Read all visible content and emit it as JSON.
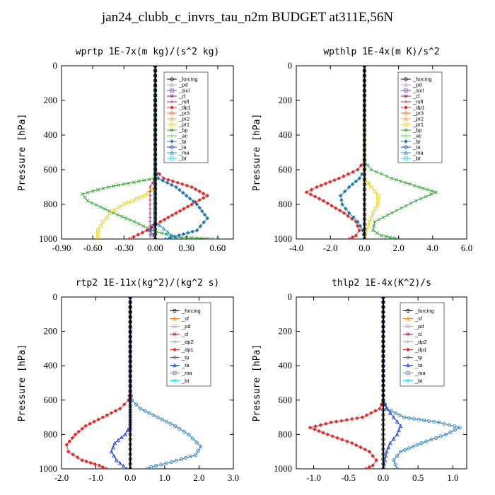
{
  "figure_title": "jan24_clubb_c_invrs_tau_n2m  BUDGET at311E,56N",
  "colors": {
    "forcing": "#000000",
    "pd": "#c8a0e6",
    "sicl": "#7a3db5",
    "cl": "#8c1a5e",
    "mfl": "#a0305a",
    "dp1": "#e62828",
    "pr3": "#f07030",
    "pr2": "#f0b040",
    "pr1": "#e6d21e",
    "bp": "#2ca02c",
    "ac": "#5ad23c",
    "tp": "#1f78b4",
    "ta": "#1f3cc8",
    "ma": "#1e96c8",
    "bt": "#1ed2e6",
    "sf": "#e68c28",
    "dp2": "#3cc83c"
  },
  "chart_data": [
    {
      "type": "line",
      "title": "wprtp  1E-7x(m kg)/(s^2 kg)",
      "ylabel": "Pressure [hPa]",
      "xlim": [
        -0.9,
        0.75
      ],
      "ylim": [
        1000,
        0
      ],
      "xticks": [
        "-0.90",
        "-0.60",
        "-0.30",
        "0.00",
        "0.30",
        "0.60"
      ],
      "yticks": [
        "0",
        "200",
        "400",
        "600",
        "800",
        "1000"
      ],
      "legend": [
        "_forcing",
        "_pd",
        "_sicl",
        "_cl",
        "_mfl",
        "_dp1",
        "_pr3",
        "_pr2",
        "_pr1",
        "_bp",
        "_ac",
        "_tp",
        "_ta",
        "_ma",
        "_bt"
      ],
      "series": [
        {
          "name": "_forcing",
          "points": [
            [
              0,
              0
            ],
            [
              0,
              1000
            ]
          ]
        },
        {
          "name": "_bp",
          "points": [
            [
              0,
              0
            ],
            [
              0,
              600
            ],
            [
              -0.01,
              650
            ],
            [
              -0.45,
              700
            ],
            [
              -0.7,
              740
            ],
            [
              -0.65,
              780
            ],
            [
              -0.4,
              850
            ],
            [
              -0.2,
              900
            ],
            [
              -0.03,
              950
            ],
            [
              0.2,
              990
            ],
            [
              0.6,
              1000
            ]
          ]
        },
        {
          "name": "_dp1",
          "points": [
            [
              0,
              0
            ],
            [
              0,
              600
            ],
            [
              0.08,
              650
            ],
            [
              0.35,
              700
            ],
            [
              0.5,
              750
            ],
            [
              0.35,
              800
            ],
            [
              0.2,
              850
            ],
            [
              0.05,
              900
            ],
            [
              -0.08,
              950
            ],
            [
              -0.25,
              1000
            ]
          ]
        },
        {
          "name": "_tp",
          "points": [
            [
              0,
              0
            ],
            [
              0,
              600
            ],
            [
              0.03,
              650
            ],
            [
              0.2,
              700
            ],
            [
              0.3,
              750
            ],
            [
              0.4,
              800
            ],
            [
              0.5,
              880
            ],
            [
              0.4,
              950
            ],
            [
              0.1,
              1000
            ]
          ]
        },
        {
          "name": "_pr1",
          "points": [
            [
              0,
              0
            ],
            [
              0,
              700
            ],
            [
              -0.1,
              750
            ],
            [
              -0.3,
              800
            ],
            [
              -0.43,
              850
            ],
            [
              -0.5,
              900
            ],
            [
              -0.55,
              950
            ],
            [
              -0.55,
              1000
            ]
          ]
        },
        {
          "name": "_mfl",
          "points": [
            [
              0,
              0
            ],
            [
              0,
              650
            ],
            [
              -0.05,
              700
            ],
            [
              -0.05,
              800
            ],
            [
              -0.05,
              900
            ],
            [
              -0.05,
              1000
            ]
          ]
        },
        {
          "name": "_ma",
          "points": [
            [
              0,
              0
            ],
            [
              0,
              900
            ],
            [
              0.2,
              1000
            ]
          ]
        },
        {
          "name": "_ta",
          "points": [
            [
              0,
              0
            ],
            [
              0,
              900
            ],
            [
              -0.05,
              950
            ],
            [
              0,
              1000
            ]
          ]
        }
      ]
    },
    {
      "type": "line",
      "title": "wpthlp  1E-4x(m K)/s^2",
      "ylabel": "Pressure [hPa]",
      "xlim": [
        -4.0,
        6.0
      ],
      "ylim": [
        1000,
        0
      ],
      "xticks": [
        "-4.0",
        "-2.0",
        "0.0",
        "2.0",
        "4.0",
        "6.0"
      ],
      "yticks": [
        "0",
        "200",
        "400",
        "600",
        "800",
        "1000"
      ],
      "legend": [
        "_forcing",
        "_pd",
        "_sicl",
        "_cl",
        "_mfl",
        "_dp1",
        "_pr3",
        "_pr2",
        "_pr1",
        "_bp",
        "_ac",
        "_tp",
        "_ta",
        "_ma",
        "_bt"
      ],
      "series": [
        {
          "name": "_forcing",
          "points": [
            [
              0,
              0
            ],
            [
              0,
              1000
            ]
          ]
        },
        {
          "name": "_bp",
          "points": [
            [
              0,
              0
            ],
            [
              0,
              550
            ],
            [
              0.4,
              600
            ],
            [
              1.6,
              650
            ],
            [
              3.2,
              700
            ],
            [
              4.2,
              730
            ],
            [
              3.0,
              780
            ],
            [
              1.6,
              850
            ],
            [
              0.6,
              900
            ],
            [
              0.5,
              950
            ],
            [
              1.0,
              980
            ],
            [
              2.0,
              1000
            ]
          ]
        },
        {
          "name": "_dp1",
          "points": [
            [
              0,
              0
            ],
            [
              0,
              550
            ],
            [
              -0.4,
              600
            ],
            [
              -1.5,
              650
            ],
            [
              -2.8,
              700
            ],
            [
              -3.4,
              730
            ],
            [
              -2.4,
              780
            ],
            [
              -1.2,
              850
            ],
            [
              -0.5,
              900
            ],
            [
              -0.3,
              950
            ],
            [
              -0.5,
              980
            ],
            [
              -0.9,
              1000
            ]
          ]
        },
        {
          "name": "_tp",
          "points": [
            [
              0,
              0
            ],
            [
              0,
              600
            ],
            [
              -0.3,
              650
            ],
            [
              -0.9,
              700
            ],
            [
              -1.4,
              750
            ],
            [
              -1.3,
              800
            ],
            [
              -0.9,
              850
            ],
            [
              -0.4,
              900
            ],
            [
              -0.1,
              950
            ],
            [
              0,
              1000
            ]
          ]
        },
        {
          "name": "_pr1",
          "points": [
            [
              0,
              0
            ],
            [
              0,
              650
            ],
            [
              0.4,
              700
            ],
            [
              0.8,
              750
            ],
            [
              0.8,
              800
            ],
            [
              0.5,
              850
            ],
            [
              0.3,
              900
            ],
            [
              0.1,
              950
            ],
            [
              0,
              1000
            ]
          ]
        }
      ]
    },
    {
      "type": "line",
      "title": "rtp2  1E-11x(kg^2)/(kg^2 s)",
      "ylabel": "Pressure [hPa]",
      "xlim": [
        -2.0,
        3.0
      ],
      "ylim": [
        1000,
        0
      ],
      "xticks": [
        "-2.0",
        "-1.0",
        "0.0",
        "1.0",
        "2.0",
        "3.0"
      ],
      "yticks": [
        "0",
        "200",
        "400",
        "600",
        "800",
        "1000"
      ],
      "legend": [
        "_forcing",
        "_sf",
        "_pd",
        "_cl",
        "_dp2",
        "_dp1",
        "_tp",
        "_ta",
        "_ma",
        "_bt"
      ],
      "series": [
        {
          "name": "_forcing",
          "points": [
            [
              0,
              0
            ],
            [
              0,
              1000
            ]
          ]
        },
        {
          "name": "_dp1",
          "points": [
            [
              0,
              0
            ],
            [
              0,
              550
            ],
            [
              -0.05,
              600
            ],
            [
              -0.3,
              650
            ],
            [
              -0.8,
              700
            ],
            [
              -1.3,
              750
            ],
            [
              -1.6,
              800
            ],
            [
              -1.85,
              860
            ],
            [
              -1.8,
              900
            ],
            [
              -1.4,
              950
            ],
            [
              -0.9,
              980
            ],
            [
              -0.7,
              1000
            ]
          ]
        },
        {
          "name": "_tp",
          "points": [
            [
              0,
              0
            ],
            [
              0,
              550
            ],
            [
              0.05,
              600
            ],
            [
              0.3,
              650
            ],
            [
              0.8,
              700
            ],
            [
              1.3,
              750
            ],
            [
              1.7,
              800
            ],
            [
              2.05,
              870
            ],
            [
              1.9,
              920
            ],
            [
              1.2,
              960
            ],
            [
              0.6,
              990
            ],
            [
              0.5,
              1000
            ]
          ]
        },
        {
          "name": "_ta",
          "points": [
            [
              0,
              0
            ],
            [
              0,
              750
            ],
            [
              -0.15,
              800
            ],
            [
              -0.45,
              850
            ],
            [
              -0.55,
              900
            ],
            [
              -0.4,
              950
            ],
            [
              -0.1,
              1000
            ]
          ]
        }
      ]
    },
    {
      "type": "line",
      "title": "thlp2  1E-4x(K^2)/s",
      "ylabel": "Pressure [hPa]",
      "xlim": [
        -1.25,
        1.2
      ],
      "ylim": [
        1000,
        0
      ],
      "xticks": [
        "-1.0",
        "-0.5",
        "0.0",
        "0.5",
        "1.0"
      ],
      "yticks": [
        "0",
        "200",
        "400",
        "600",
        "800",
        "1000"
      ],
      "legend": [
        "_forcing",
        "_sf",
        "_pd",
        "_cl",
        "_dp2",
        "_dp1",
        "_tp",
        "_ta",
        "_ma",
        "_bt"
      ],
      "series": [
        {
          "name": "_forcing",
          "points": [
            [
              0,
              0
            ],
            [
              0,
              1000
            ]
          ]
        },
        {
          "name": "_dp1",
          "points": [
            [
              0,
              0
            ],
            [
              0,
              600
            ],
            [
              -0.05,
              650
            ],
            [
              -0.3,
              700
            ],
            [
              -0.75,
              730
            ],
            [
              -1.05,
              760
            ],
            [
              -0.8,
              800
            ],
            [
              -0.45,
              850
            ],
            [
              -0.2,
              900
            ],
            [
              -0.1,
              950
            ],
            [
              -0.15,
              980
            ],
            [
              -0.25,
              1000
            ]
          ]
        },
        {
          "name": "_tp",
          "points": [
            [
              0,
              0
            ],
            [
              0,
              600
            ],
            [
              0.05,
              650
            ],
            [
              0.3,
              700
            ],
            [
              0.8,
              730
            ],
            [
              1.1,
              760
            ],
            [
              0.9,
              800
            ],
            [
              0.55,
              850
            ],
            [
              0.25,
              900
            ],
            [
              0.15,
              950
            ],
            [
              0.2,
              1000
            ]
          ]
        },
        {
          "name": "_ta",
          "points": [
            [
              0,
              0
            ],
            [
              0,
              600
            ],
            [
              0.05,
              650
            ],
            [
              0.15,
              700
            ],
            [
              0.25,
              750
            ],
            [
              0.2,
              800
            ],
            [
              0.1,
              850
            ],
            [
              0.05,
              900
            ],
            [
              0,
              1000
            ]
          ]
        }
      ]
    }
  ]
}
